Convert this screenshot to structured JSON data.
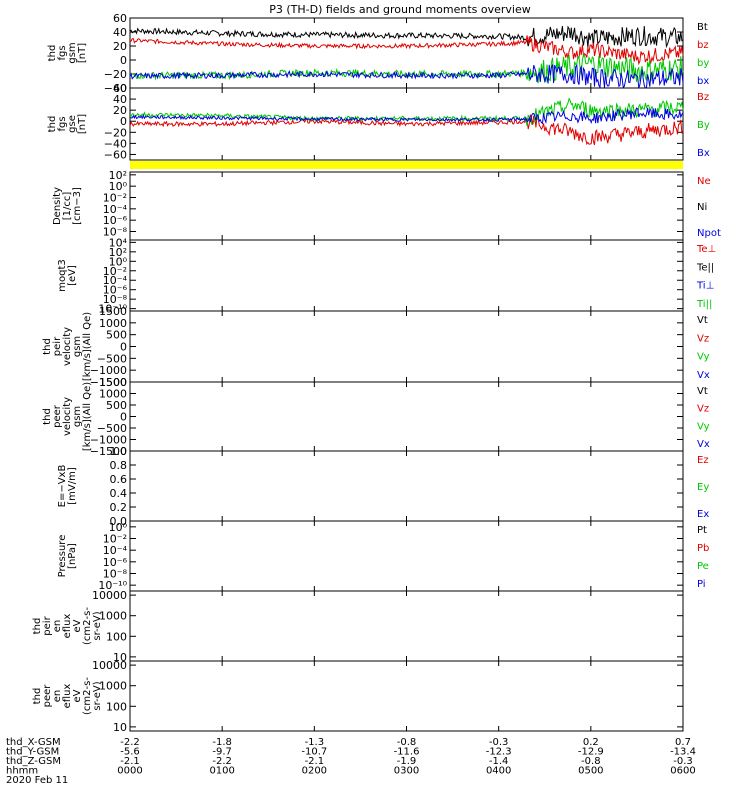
{
  "chart_data": {
    "type": "line",
    "title": "P3 (TH-D) fields and ground moments overview",
    "x_ticks": [
      "0000",
      "0100",
      "0200",
      "0300",
      "0400",
      "0500",
      "0600"
    ],
    "ephemeris": {
      "rows": [
        {
          "label": "thd_X-GSM",
          "values": [
            "-2.2",
            "-1.8",
            "-1.3",
            "-0.8",
            "-0.3",
            "0.2",
            "0.7"
          ]
        },
        {
          "label": "thd_Y-GSM",
          "values": [
            "-5.6",
            "-9.7",
            "-10.7",
            "-11.6",
            "-12.3",
            "-12.9",
            "-13.4"
          ]
        },
        {
          "label": "thd_Z-GSM",
          "values": [
            "-2.1",
            "-2.2",
            "-2.1",
            "-1.9",
            "-1.4",
            "-0.8",
            "-0.3"
          ]
        },
        {
          "label": "hhmm",
          "values": [
            "0000",
            "0100",
            "0200",
            "0300",
            "0400",
            "0500",
            "0600"
          ]
        }
      ],
      "date": "2020 Feb 11"
    },
    "panels": [
      {
        "id": "fgs-gsm",
        "ylabel": [
          "thd",
          "fgs",
          "gsm",
          "[nT]"
        ],
        "yticks": [
          "60",
          "40",
          "20",
          "0",
          "−20",
          "−40"
        ],
        "ytick_values": [
          60,
          40,
          20,
          0,
          -20,
          -40
        ],
        "ylim": [
          -40,
          60
        ],
        "legend": [
          {
            "text": "Bt",
            "color": "#000000"
          },
          {
            "text": "bz",
            "color": "#e00000"
          },
          {
            "text": "by",
            "color": "#00c800"
          },
          {
            "text": "bx",
            "color": "#0000e0"
          }
        ],
        "series": [
          {
            "color": "#000000",
            "noise": 4,
            "x": [
              0,
              1,
              2,
              3,
              4,
              4.3,
              4.8,
              5,
              5.5,
              6
            ],
            "y": [
              42,
              38,
              36,
              35,
              34,
              32,
              40,
              30,
              35,
              32
            ]
          },
          {
            "color": "#e00000",
            "noise": 3,
            "x": [
              0,
              1,
              2,
              3,
              4,
              4.3,
              4.8,
              5,
              5.5,
              6
            ],
            "y": [
              28,
              23,
              20,
              20,
              23,
              25,
              10,
              15,
              5,
              10
            ]
          },
          {
            "color": "#00c800",
            "noise": 5,
            "x": [
              0,
              1,
              2,
              3,
              4,
              4.3,
              4.8,
              5,
              5.5,
              6
            ],
            "y": [
              -22,
              -22,
              -18,
              -20,
              -20,
              -18,
              -10,
              -5,
              -15,
              -12
            ]
          },
          {
            "color": "#0000e0",
            "noise": 4,
            "x": [
              0,
              1,
              2,
              3,
              4,
              4.3,
              4.8,
              5,
              5.5,
              6
            ],
            "y": [
              -23,
              -22,
              -20,
              -22,
              -22,
              -20,
              -20,
              -25,
              -28,
              -25
            ]
          }
        ]
      },
      {
        "id": "fgs-gse",
        "ylabel": [
          "thd",
          "fgs",
          "gse",
          "[nT]"
        ],
        "yticks": [
          "60",
          "40",
          "20",
          "0",
          "−20",
          "−40",
          "−60"
        ],
        "ytick_values": [
          60,
          40,
          20,
          0,
          -20,
          -40,
          -60
        ],
        "ylim": [
          -70,
          60
        ],
        "legend": [
          {
            "text": "Bz",
            "color": "#e00000"
          },
          {
            "text": "By",
            "color": "#00c800"
          },
          {
            "text": "Bx",
            "color": "#0000e0"
          }
        ],
        "series": [
          {
            "color": "#e00000",
            "noise": 4,
            "x": [
              0,
              1,
              2,
              3,
              4,
              4.3,
              4.8,
              5,
              5.5,
              6
            ],
            "y": [
              -5,
              -5,
              0,
              -5,
              -2,
              0,
              -20,
              -30,
              -20,
              -10
            ]
          },
          {
            "color": "#00c800",
            "noise": 4,
            "x": [
              0,
              1,
              2,
              3,
              4,
              4.3,
              4.8,
              5,
              5.5,
              6
            ],
            "y": [
              12,
              10,
              5,
              5,
              5,
              5,
              30,
              20,
              20,
              25
            ]
          },
          {
            "color": "#0000e0",
            "noise": 3,
            "x": [
              0,
              1,
              2,
              3,
              4,
              4.3,
              4.8,
              5,
              5.5,
              6
            ],
            "y": [
              8,
              6,
              4,
              3,
              3,
              4,
              10,
              5,
              15,
              10
            ]
          }
        ]
      },
      {
        "id": "density",
        "ylabel": [
          "Density",
          "[1/cc]",
          "[cm−3]"
        ],
        "yticks": [
          "10²",
          "10⁰",
          "10⁻²",
          "10⁻⁴",
          "10⁻⁶",
          "10⁻⁸"
        ],
        "ytick_values": [
          2,
          0,
          -2,
          -4,
          -6,
          -8
        ],
        "ylim": [
          -9.5,
          2.5
        ],
        "legend": [
          {
            "text": "Ne",
            "color": "#e00000"
          },
          {
            "text": "Ni",
            "color": "#000000"
          },
          {
            "text": "Npot",
            "color": "#0000e0"
          }
        ],
        "series": []
      },
      {
        "id": "temp",
        "ylabel": [
          "moqt3",
          "[eV]"
        ],
        "yticks": [
          "10⁴",
          "10²",
          "10⁰",
          "10⁻²",
          "10⁻⁴",
          "10⁻⁶",
          "10⁻⁸",
          "10⁻¹⁰"
        ],
        "ytick_values": [
          4,
          2,
          0,
          -2,
          -4,
          -6,
          -8,
          -10
        ],
        "ylim": [
          -10.5,
          4.5
        ],
        "legend": [
          {
            "text": "Te⊥",
            "color": "#e00000"
          },
          {
            "text": "Te||",
            "color": "#000000"
          },
          {
            "text": "Ti⊥",
            "color": "#0000e0"
          },
          {
            "text": "Ti||",
            "color": "#00c800"
          }
        ],
        "series": []
      },
      {
        "id": "vel-ion",
        "ylabel": [
          "thd",
          "peir",
          "velocity",
          "gsm",
          "[km/s](All Qe)"
        ],
        "yticks": [
          "1500",
          "1000",
          "500",
          "0",
          "−500",
          "−1000",
          "−1500"
        ],
        "ytick_values": [
          1500,
          1000,
          500,
          0,
          -500,
          -1000,
          -1500
        ],
        "ylim": [
          -1500,
          1500
        ],
        "legend": [
          {
            "text": "Vt",
            "color": "#000000"
          },
          {
            "text": "Vz",
            "color": "#e00000"
          },
          {
            "text": "Vy",
            "color": "#00c800"
          },
          {
            "text": "Vx",
            "color": "#0000e0"
          }
        ],
        "series": []
      },
      {
        "id": "vel-ele",
        "ylabel": [
          "thd",
          "peer",
          "velocity",
          "gsm",
          "[km/s](All Qe)"
        ],
        "yticks": [
          "1500",
          "1000",
          "500",
          "0",
          "−500",
          "−1000",
          "−1500"
        ],
        "ytick_values": [
          1500,
          1000,
          500,
          0,
          -500,
          -1000,
          -1500
        ],
        "ylim": [
          -1500,
          1500
        ],
        "legend": [
          {
            "text": "Vt",
            "color": "#000000"
          },
          {
            "text": "Vz",
            "color": "#e00000"
          },
          {
            "text": "Vy",
            "color": "#00c800"
          },
          {
            "text": "Vx",
            "color": "#0000e0"
          }
        ],
        "series": []
      },
      {
        "id": "efield",
        "ylabel": [
          "E=−VxB",
          "[mV/m]"
        ],
        "yticks": [
          "1.0",
          "0.8",
          "0.6",
          "0.4",
          "0.2",
          "0.0"
        ],
        "ytick_values": [
          1.0,
          0.8,
          0.6,
          0.4,
          0.2,
          0.0
        ],
        "ylim": [
          0,
          1
        ],
        "legend": [
          {
            "text": "Ez",
            "color": "#e00000"
          },
          {
            "text": "Ey",
            "color": "#00c800"
          },
          {
            "text": "Ex",
            "color": "#0000e0"
          }
        ],
        "series": []
      },
      {
        "id": "pressure",
        "ylabel": [
          "Pressure",
          "[nPa]"
        ],
        "yticks": [
          "10⁰",
          "10⁻²",
          "10⁻⁴",
          "10⁻⁶",
          "10⁻⁸",
          "10⁻¹⁰"
        ],
        "ytick_values": [
          0,
          -2,
          -4,
          -6,
          -8,
          -10
        ],
        "ylim": [
          -11,
          1
        ],
        "legend": [
          {
            "text": "Pt",
            "color": "#000000"
          },
          {
            "text": "Pb",
            "color": "#e00000"
          },
          {
            "text": "Pe",
            "color": "#00c800"
          },
          {
            "text": "Pi",
            "color": "#0000e0"
          }
        ],
        "series": []
      },
      {
        "id": "ion-spec",
        "ylabel": [
          "thd",
          "peir",
          "en",
          "eflux",
          "eV",
          "(cm2-s-",
          "sr-eV)"
        ],
        "yticks": [
          "10000",
          "1000",
          "100",
          "10"
        ],
        "ytick_values": [
          4,
          3,
          2,
          1
        ],
        "ylim": [
          0.8,
          4.2
        ],
        "legend": [],
        "series": []
      },
      {
        "id": "ele-spec",
        "ylabel": [
          "thd",
          "peer",
          "en",
          "eflux",
          "eV",
          "(cm2-s-",
          "sr-eV)"
        ],
        "yticks": [
          "10000",
          "1000",
          "100",
          "10"
        ],
        "ytick_values": [
          4,
          3,
          2,
          1
        ],
        "ylim": [
          0.8,
          4.2
        ],
        "legend": [],
        "series": []
      }
    ],
    "colors": {
      "black": "#000000",
      "red": "#e00000",
      "green": "#00c800",
      "blue": "#0000e0",
      "yellow": "#ffff00"
    }
  }
}
